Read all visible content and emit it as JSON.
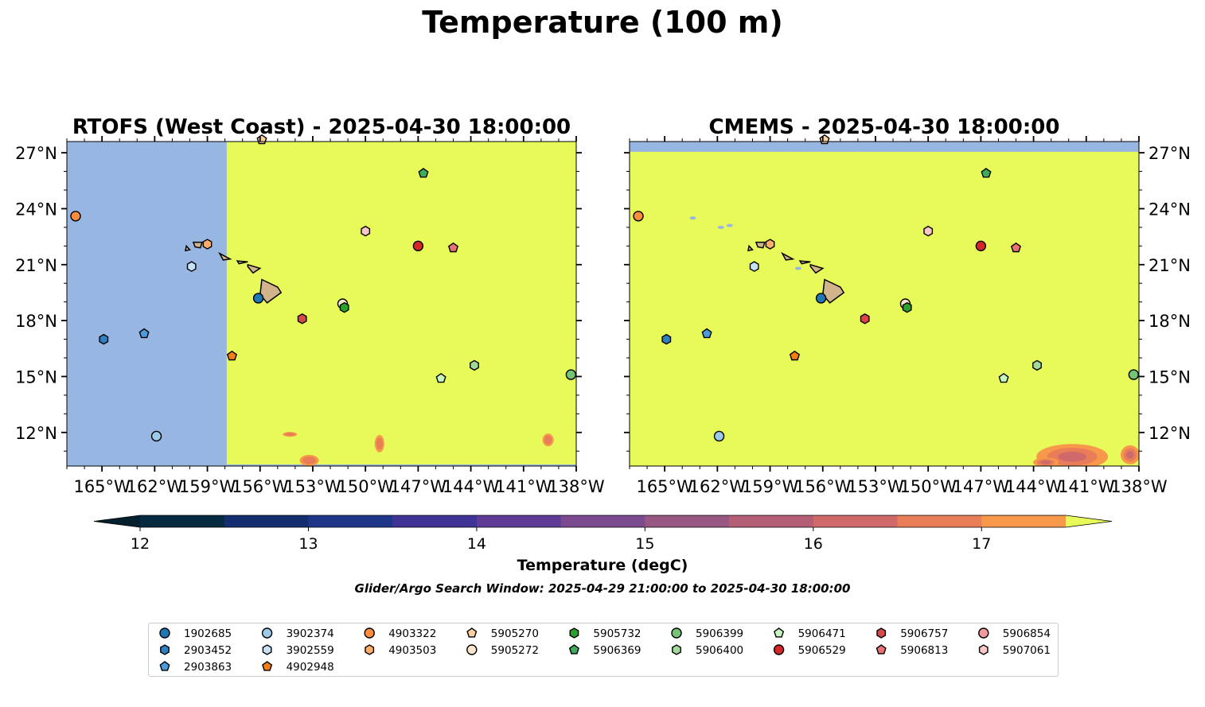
{
  "figure": {
    "suptitle": "Temperature (100 m)",
    "colorbar_label": "Temperature (degC)",
    "search_window_note": "Glider/Argo Search Window: 2025-04-29 21:00:00 to 2025-04-30 18:00:00"
  },
  "chart_data": [
    {
      "type": "heatmap",
      "panel": "left",
      "title": "RTOFS (West Coast) - 2025-04-30 18:00:00",
      "xlabel": "",
      "ylabel": "",
      "xlim": [
        -167,
        -138
      ],
      "ylim": [
        10.2,
        27.6
      ],
      "x_ticks": [
        "165°W",
        "162°W",
        "159°W",
        "156°W",
        "153°W",
        "150°W",
        "147°W",
        "144°W",
        "141°W",
        "138°W"
      ],
      "y_ticks": [
        "12°N",
        "15°N",
        "18°N",
        "21°N",
        "24°N",
        "27°N"
      ],
      "y_axis_side": "left",
      "no_data_region": {
        "lon_max": -157.9,
        "color": "#98b6e2"
      },
      "field_value_c": 17.6,
      "warm_patches_c": [
        16.5,
        16.8,
        17.2
      ]
    },
    {
      "type": "heatmap",
      "panel": "right",
      "title": "CMEMS - 2025-04-30 18:00:00",
      "xlabel": "",
      "ylabel": "",
      "xlim": [
        -167,
        -138
      ],
      "ylim": [
        10.2,
        27.6
      ],
      "x_ticks": [
        "165°W",
        "162°W",
        "159°W",
        "156°W",
        "153°W",
        "150°W",
        "147°W",
        "144°W",
        "141°W",
        "138°W"
      ],
      "y_ticks": [
        "12°N",
        "15°N",
        "18°N",
        "21°N",
        "24°N",
        "27°N"
      ],
      "y_axis_side": "right",
      "no_data_region": {
        "lat_min": 27.05,
        "color": "#98b6e2"
      },
      "field_value_c": 17.6,
      "warm_patches_c": [
        16.3,
        16.6,
        17.0
      ]
    }
  ],
  "colorbar": {
    "ticks": [
      "12",
      "13",
      "14",
      "15",
      "16",
      "17"
    ],
    "tick_values": [
      12,
      13,
      14,
      15,
      16,
      17
    ],
    "range": [
      12,
      17.5
    ],
    "step": 0.5,
    "colors": [
      "#062a3f",
      "#132d6e",
      "#1f3688",
      "#3f3496",
      "#5e3c96",
      "#7c4a8e",
      "#985683",
      "#b55f77",
      "#d06a6a",
      "#e87d58",
      "#f7984a",
      "#fab43c",
      "#f8d53b"
    ],
    "under_color": "#041f2d",
    "over_color": "#e7fa5a",
    "land_color": "#d1b48c",
    "nan_color": "#98b6e2"
  },
  "profiles": [
    {
      "id": "1902685",
      "marker": "circle",
      "color": "#1f77b4",
      "lon": -156.1,
      "lat": 19.2
    },
    {
      "id": "2903452",
      "marker": "hexagon",
      "color": "#2f7fc1",
      "lon": -164.9,
      "lat": 17.0
    },
    {
      "id": "2903863",
      "marker": "pentagon",
      "color": "#4c9bdc",
      "lon": -162.6,
      "lat": 17.3
    },
    {
      "id": "3902374",
      "marker": "circle",
      "color": "#9ecae9",
      "lon": -161.9,
      "lat": 11.8
    },
    {
      "id": "3902559",
      "marker": "hexagon",
      "color": "#c6e2f7",
      "lon": -159.9,
      "lat": 20.9
    },
    {
      "id": "4902948",
      "marker": "pentagon",
      "color": "#f47d14",
      "lon": -157.6,
      "lat": 16.1
    },
    {
      "id": "4903322",
      "marker": "circle",
      "color": "#fd8d3c",
      "lon": -166.5,
      "lat": 23.6
    },
    {
      "id": "4903503",
      "marker": "hexagon",
      "color": "#fdae6b",
      "lon": -159.0,
      "lat": 22.1
    },
    {
      "id": "5905270",
      "marker": "pentagon",
      "color": "#fdd0a2",
      "lon": -155.9,
      "lat": 27.7
    },
    {
      "id": "5905272",
      "marker": "circle",
      "color": "#fde5cd",
      "lon": -151.3,
      "lat": 18.9
    },
    {
      "id": "5905732",
      "marker": "hexagon",
      "color": "#2ca02c",
      "lon": -151.2,
      "lat": 18.7
    },
    {
      "id": "5906369",
      "marker": "pentagon",
      "color": "#41ab5d",
      "lon": -146.7,
      "lat": 25.9
    },
    {
      "id": "5906399",
      "marker": "circle",
      "color": "#74c476",
      "lon": -138.3,
      "lat": 15.1
    },
    {
      "id": "5906400",
      "marker": "hexagon",
      "color": "#a1d99b",
      "lon": -143.8,
      "lat": 15.6
    },
    {
      "id": "5906471",
      "marker": "pentagon",
      "color": "#c7f5c0",
      "lon": -145.7,
      "lat": 14.9
    },
    {
      "id": "5906529",
      "marker": "circle",
      "color": "#d62728",
      "lon": -147.0,
      "lat": 22.0
    },
    {
      "id": "5906757",
      "marker": "hexagon",
      "color": "#d9474a",
      "lon": -153.6,
      "lat": 18.1
    },
    {
      "id": "5906813",
      "marker": "pentagon",
      "color": "#e87274",
      "lon": -145.0,
      "lat": 21.9
    },
    {
      "id": "5906854",
      "marker": "circle",
      "color": "#f29a9b",
      "lon": -150.0,
      "lat": 22.8
    },
    {
      "id": "5907061",
      "marker": "hexagon",
      "color": "#fbc6c6",
      "lon": -150.0,
      "lat": 22.8
    }
  ],
  "islands": [
    {
      "name": "Hawaii",
      "points": [
        [
          -155.9,
          20.2
        ],
        [
          -155.0,
          19.8
        ],
        [
          -154.8,
          19.5
        ],
        [
          -155.6,
          18.95
        ],
        [
          -156.0,
          19.4
        ]
      ]
    },
    {
      "name": "Maui",
      "points": [
        [
          -156.7,
          21.0
        ],
        [
          -156.0,
          20.8
        ],
        [
          -156.4,
          20.55
        ],
        [
          -156.7,
          20.9
        ]
      ]
    },
    {
      "name": "Molokai",
      "points": [
        [
          -157.3,
          21.2
        ],
        [
          -156.7,
          21.15
        ],
        [
          -157.2,
          21.05
        ]
      ]
    },
    {
      "name": "Oahu",
      "points": [
        [
          -158.3,
          21.6
        ],
        [
          -157.7,
          21.3
        ],
        [
          -158.1,
          21.25
        ]
      ]
    },
    {
      "name": "Kauai",
      "points": [
        [
          -159.8,
          22.2
        ],
        [
          -159.3,
          22.2
        ],
        [
          -159.4,
          21.9
        ],
        [
          -159.7,
          21.95
        ]
      ]
    },
    {
      "name": "Niihau",
      "points": [
        [
          -160.2,
          22.0
        ],
        [
          -160.0,
          21.8
        ],
        [
          -160.25,
          21.75
        ]
      ]
    }
  ],
  "legend": {
    "columns": [
      [
        "1902685",
        "2903452",
        "2903863"
      ],
      [
        "3902374",
        "3902559",
        "4902948"
      ],
      [
        "4903322",
        "4903503"
      ],
      [
        "5905270",
        "5905272"
      ],
      [
        "5905732",
        "5906369"
      ],
      [
        "5906399",
        "5906400"
      ],
      [
        "5906471",
        "5906529"
      ],
      [
        "5906757",
        "5906813"
      ],
      [
        "5906854",
        "5907061"
      ]
    ]
  }
}
